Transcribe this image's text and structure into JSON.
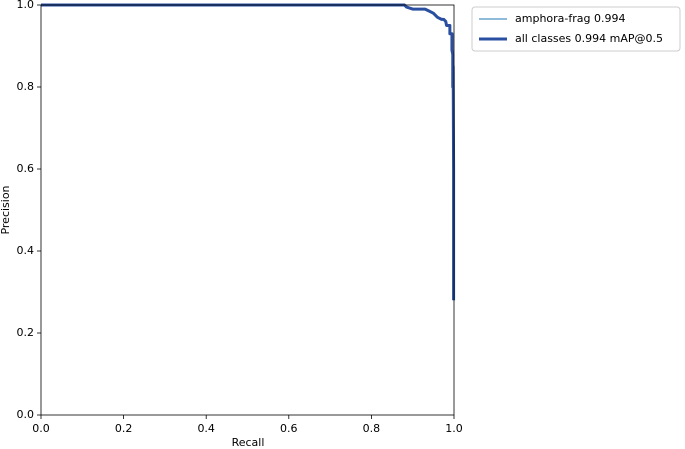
{
  "chart_data": {
    "type": "line",
    "xlabel": "Recall",
    "ylabel": "Precision",
    "x": [
      0,
      0.5,
      0.88,
      0.885,
      0.9,
      0.93,
      0.94,
      0.95,
      0.96,
      0.97,
      0.975,
      0.98,
      0.982,
      0.99,
      0.99,
      0.995,
      0.995,
      0.997,
      0.997,
      0.998,
      0.999,
      0.999
    ],
    "series": [
      {
        "name": "amphora-frag 0.994",
        "color": "#1f77b4",
        "values": [
          1,
          1,
          1,
          0.995,
          0.99,
          0.99,
          0.985,
          0.98,
          0.97,
          0.965,
          0.965,
          0.96,
          0.95,
          0.95,
          0.93,
          0.93,
          0.89,
          0.88,
          0.8,
          0.85,
          0.6,
          0.28
        ]
      },
      {
        "name": "all classes 0.994 mAP@0.5",
        "color": "#2a4fa0",
        "values": [
          1,
          1,
          1,
          0.995,
          0.99,
          0.99,
          0.985,
          0.98,
          0.97,
          0.965,
          0.965,
          0.96,
          0.95,
          0.95,
          0.93,
          0.93,
          0.89,
          0.88,
          0.8,
          0.85,
          0.6,
          0.28
        ]
      }
    ],
    "xlim": [
      0,
      1
    ],
    "ylim": [
      0,
      1
    ],
    "xticks": [
      {
        "value": 0,
        "label": "0.0"
      },
      0.2,
      0.4,
      0.6,
      0.8,
      {
        "value": 1,
        "label": "1.0"
      }
    ],
    "yticks": [
      {
        "value": 0,
        "label": "0.0"
      },
      0.2,
      0.4,
      0.6,
      0.8,
      {
        "value": 1,
        "label": "1.0"
      }
    ],
    "grid": false,
    "legend": "outside upper right"
  }
}
